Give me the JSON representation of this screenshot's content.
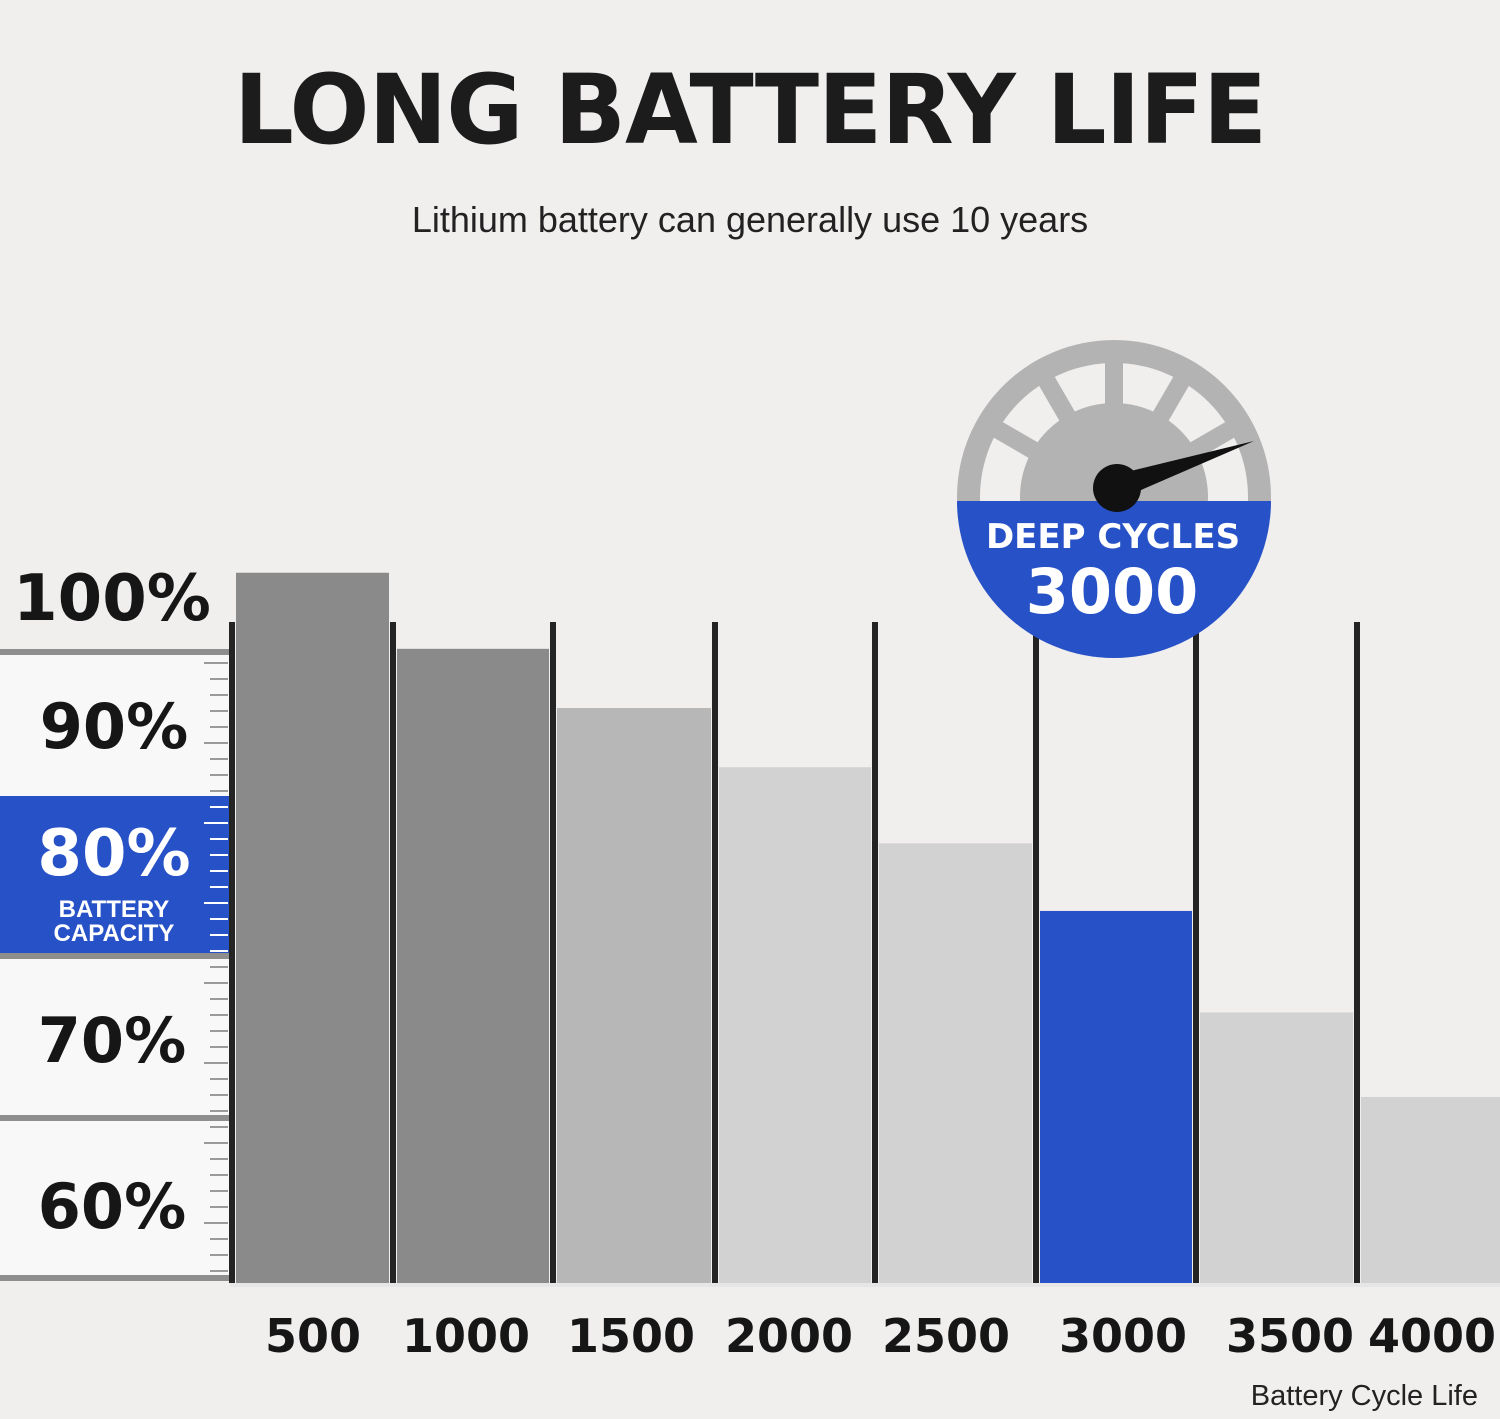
{
  "title": "LONG BATTERY LIFE",
  "subtitle": "Lithium battery can generally use 10 years",
  "badge": {
    "line1": "DEEP CYCLES",
    "line2": "3000",
    "color": "#2752c7"
  },
  "highlight_band": {
    "value": "80%",
    "line1": "BATTERY",
    "line2": "CAPACITY"
  },
  "chart_data": {
    "type": "bar",
    "categories": [
      "500",
      "1000",
      "1500",
      "2000",
      "2500",
      "3000",
      "3500",
      "4000"
    ],
    "values": [
      97,
      92.5,
      89,
      85.5,
      81,
      77,
      71,
      66
    ],
    "xlabel": "Battery Cycle Life",
    "ylabel": "",
    "y_ticks": [
      "100%",
      "90%",
      "80%",
      "70%",
      "60%"
    ],
    "ylim": [
      55,
      100
    ],
    "highlight_category": "3000",
    "colors": {
      "bars": [
        "#8a8a8a",
        "#8a8a8a",
        "#b7b7b7",
        "#d2d2d2",
        "#d2d2d2",
        "#2752c7",
        "#d2d2d2",
        "#d2d2d2"
      ],
      "accent": "#2752c7",
      "divider": "#242424"
    },
    "grid": false,
    "legend": "none"
  }
}
